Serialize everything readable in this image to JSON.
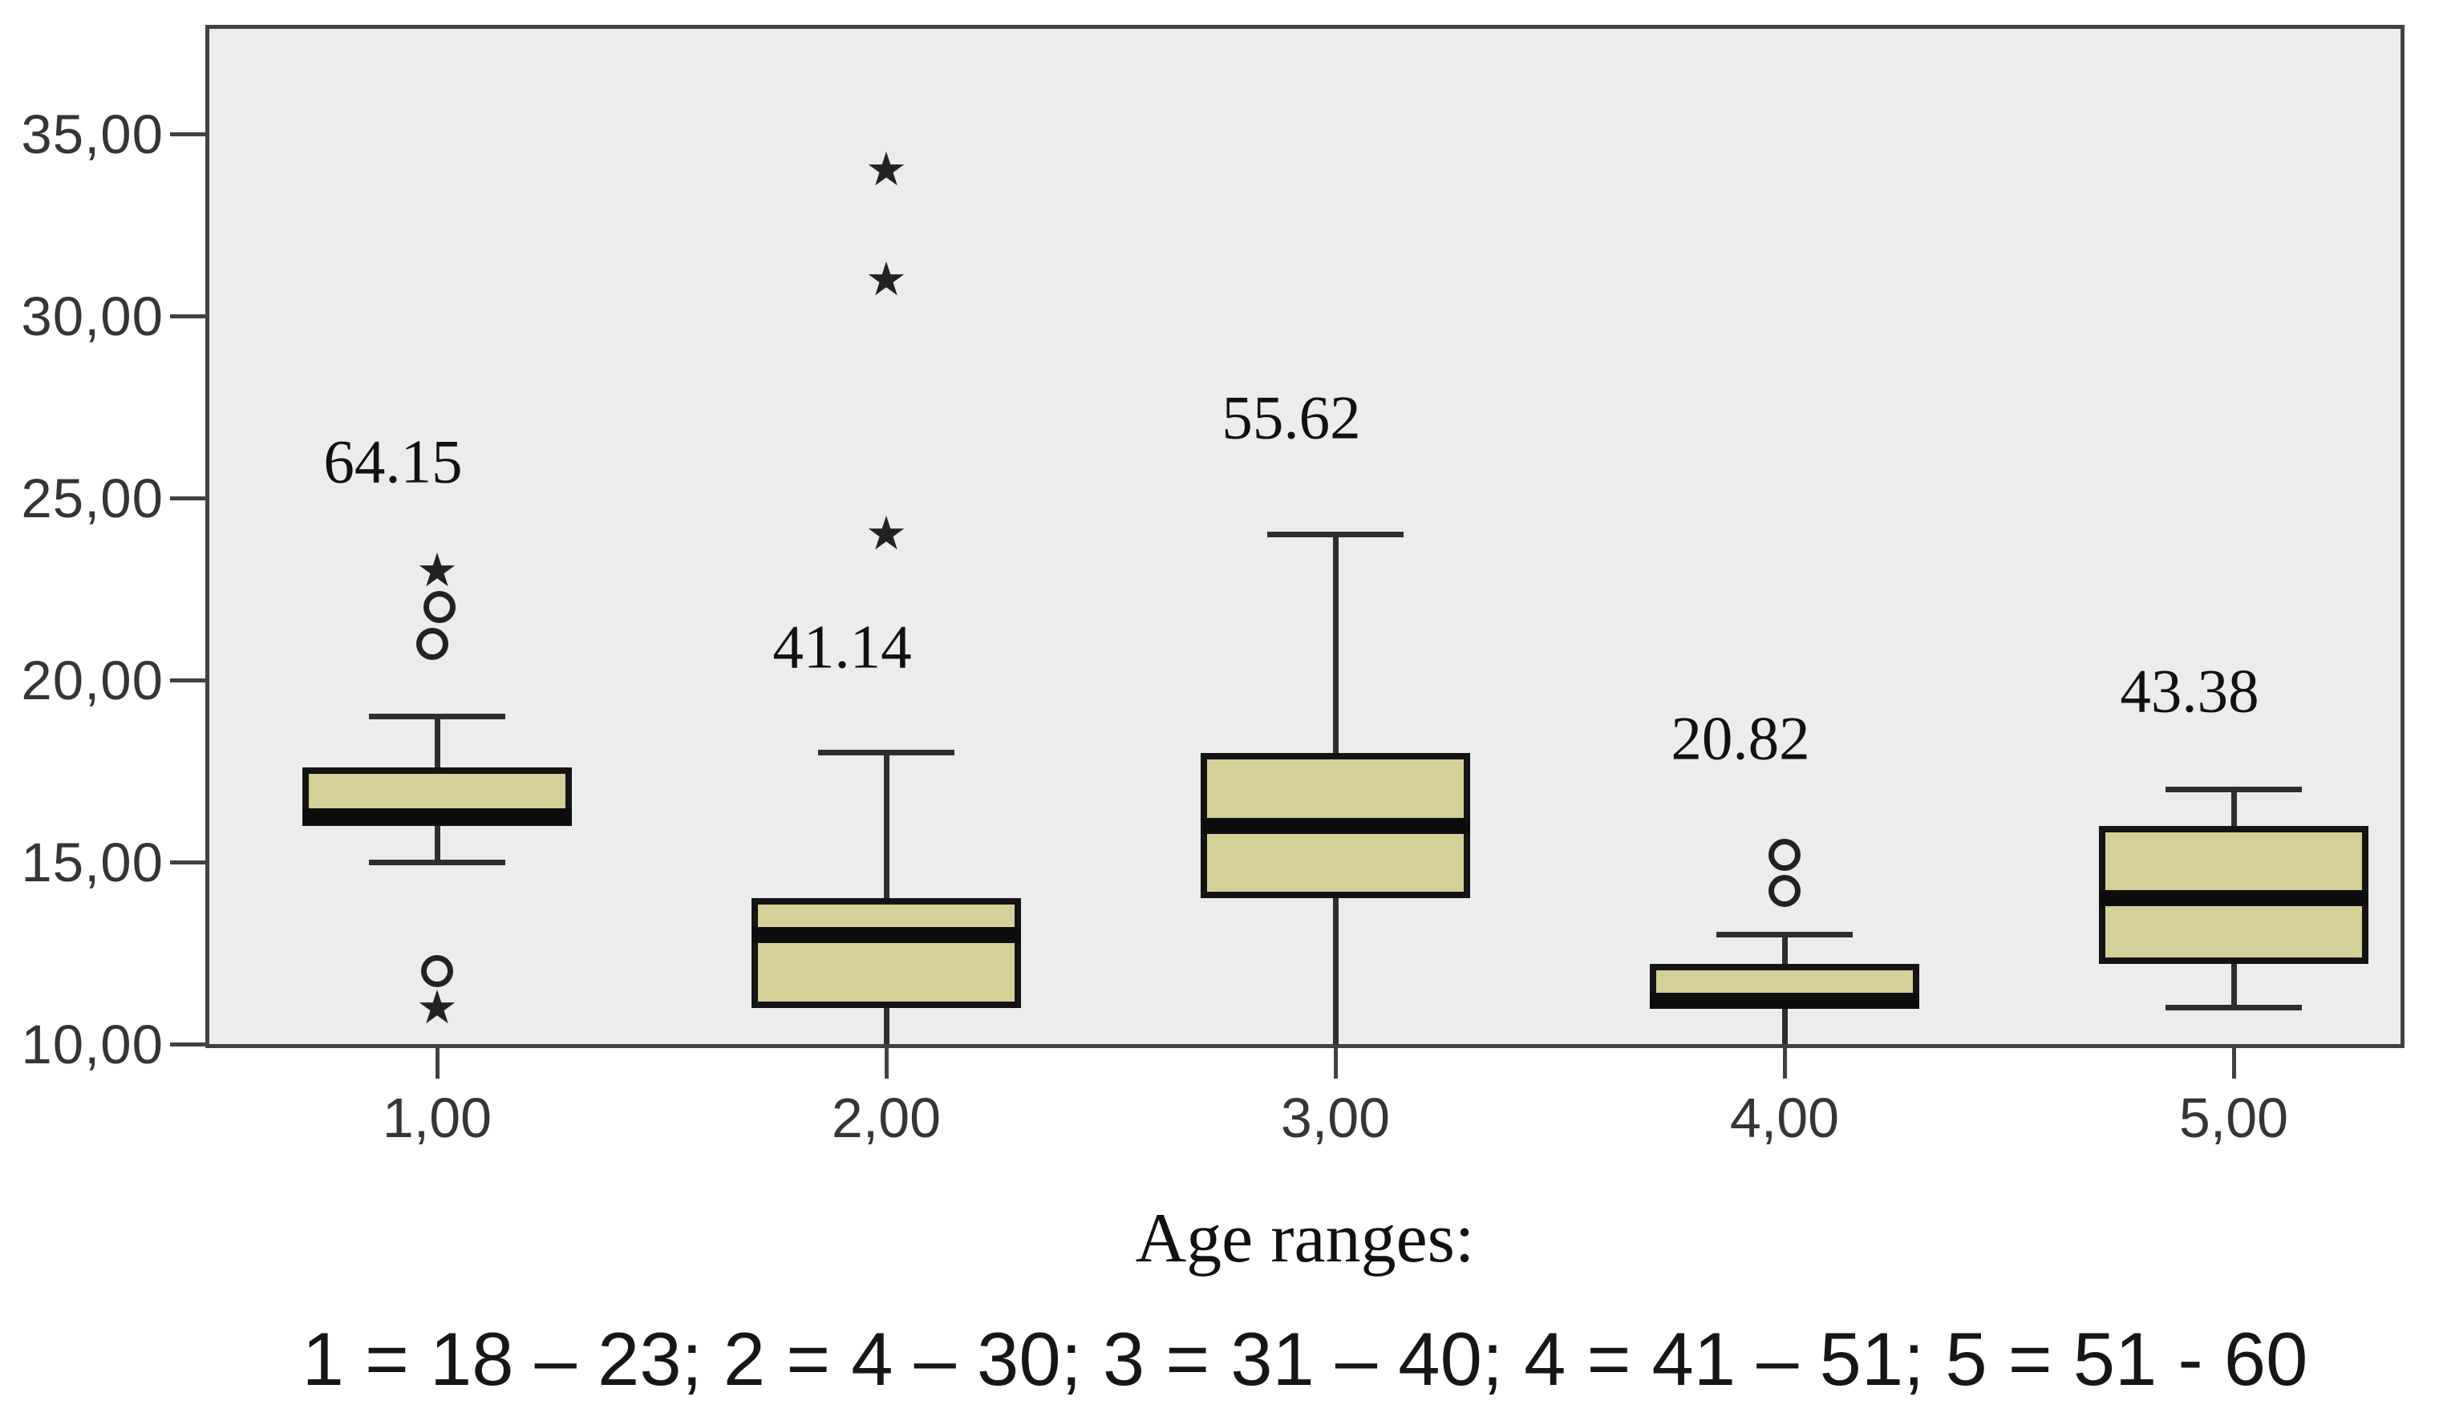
{
  "figure": {
    "caption_title": "Age ranges:",
    "caption_legend": "1 = 18 – 23; 2 = 4 – 30; 3 = 31 – 40; 4 = 41 – 51; 5 = 51 - 60"
  },
  "chart_data": {
    "type": "boxplot",
    "title": "",
    "xlabel": "Age ranges:",
    "ylabel": "",
    "ylim": [
      10,
      35
    ],
    "grid": false,
    "legend_position": "none",
    "colors": {
      "plot_background": "#ececee",
      "plot_border": "#414144",
      "box_fill": "#d5cf98",
      "box_border": "#141414",
      "median": "#0d0d0d",
      "line": "#2e2e2e",
      "tick_label": "#353535",
      "annotation": "#111111",
      "outlier": "#222222"
    },
    "y_ticks": [
      {
        "value": 35,
        "label": "35,00"
      },
      {
        "value": 30,
        "label": "30,00"
      },
      {
        "value": 25,
        "label": "25,00"
      },
      {
        "value": 20,
        "label": "20,00"
      },
      {
        "value": 15,
        "label": "15,00"
      },
      {
        "value": 10,
        "label": "10,00"
      }
    ],
    "categories": [
      "1,00",
      "2,00",
      "3,00",
      "4,00",
      "5,00"
    ],
    "groups": [
      {
        "category": "1,00",
        "annotation": "64.15",
        "annotation_v": 26.0,
        "q1": 16.0,
        "median": 16.25,
        "q3": 17.6,
        "whisker_low": 15.0,
        "whisker_high": 19.0,
        "cap_low": true,
        "cap_high": true,
        "outliers": [
          {
            "v": 23,
            "glyph": "star",
            "dx": 0
          },
          {
            "v": 22,
            "glyph": "circle",
            "dx": 3
          },
          {
            "v": 21,
            "glyph": "circle",
            "dx": -6
          },
          {
            "v": 12,
            "glyph": "circle",
            "dx": 0
          },
          {
            "v": 11,
            "glyph": "star",
            "dx": 0
          }
        ]
      },
      {
        "category": "2,00",
        "annotation": "41.14",
        "annotation_v": 20.9,
        "q1": 11.0,
        "median": 13.0,
        "q3": 14.0,
        "whisker_low": 10.0,
        "whisker_high": 18.0,
        "cap_low": false,
        "cap_high": true,
        "outliers": [
          {
            "v": 34,
            "glyph": "star",
            "dx": 0
          },
          {
            "v": 31,
            "glyph": "star",
            "dx": 0
          },
          {
            "v": 24,
            "glyph": "star",
            "dx": 0
          }
        ]
      },
      {
        "category": "3,00",
        "annotation": "55.62",
        "annotation_v": 27.2,
        "q1": 14.0,
        "median": 16.0,
        "q3": 18.0,
        "whisker_low": 10.0,
        "whisker_high": 24.0,
        "cap_low": false,
        "cap_high": true,
        "outliers": []
      },
      {
        "category": "4,00",
        "annotation": "20.82",
        "annotation_v": 18.4,
        "q1": 11.0,
        "median": 11.2,
        "q3": 12.2,
        "whisker_low": 10.0,
        "whisker_high": 13.0,
        "cap_low": false,
        "cap_high": true,
        "outliers": [
          {
            "v": 15.2,
            "glyph": "circle",
            "dx": 0
          },
          {
            "v": 14.2,
            "glyph": "circle",
            "dx": 0
          }
        ]
      },
      {
        "category": "5,00",
        "annotation": "43.38",
        "annotation_v": 19.7,
        "q1": 12.2,
        "median": 14.0,
        "q3": 16.0,
        "whisker_low": 11.0,
        "whisker_high": 17.0,
        "cap_low": true,
        "cap_high": true,
        "outliers": []
      }
    ]
  }
}
